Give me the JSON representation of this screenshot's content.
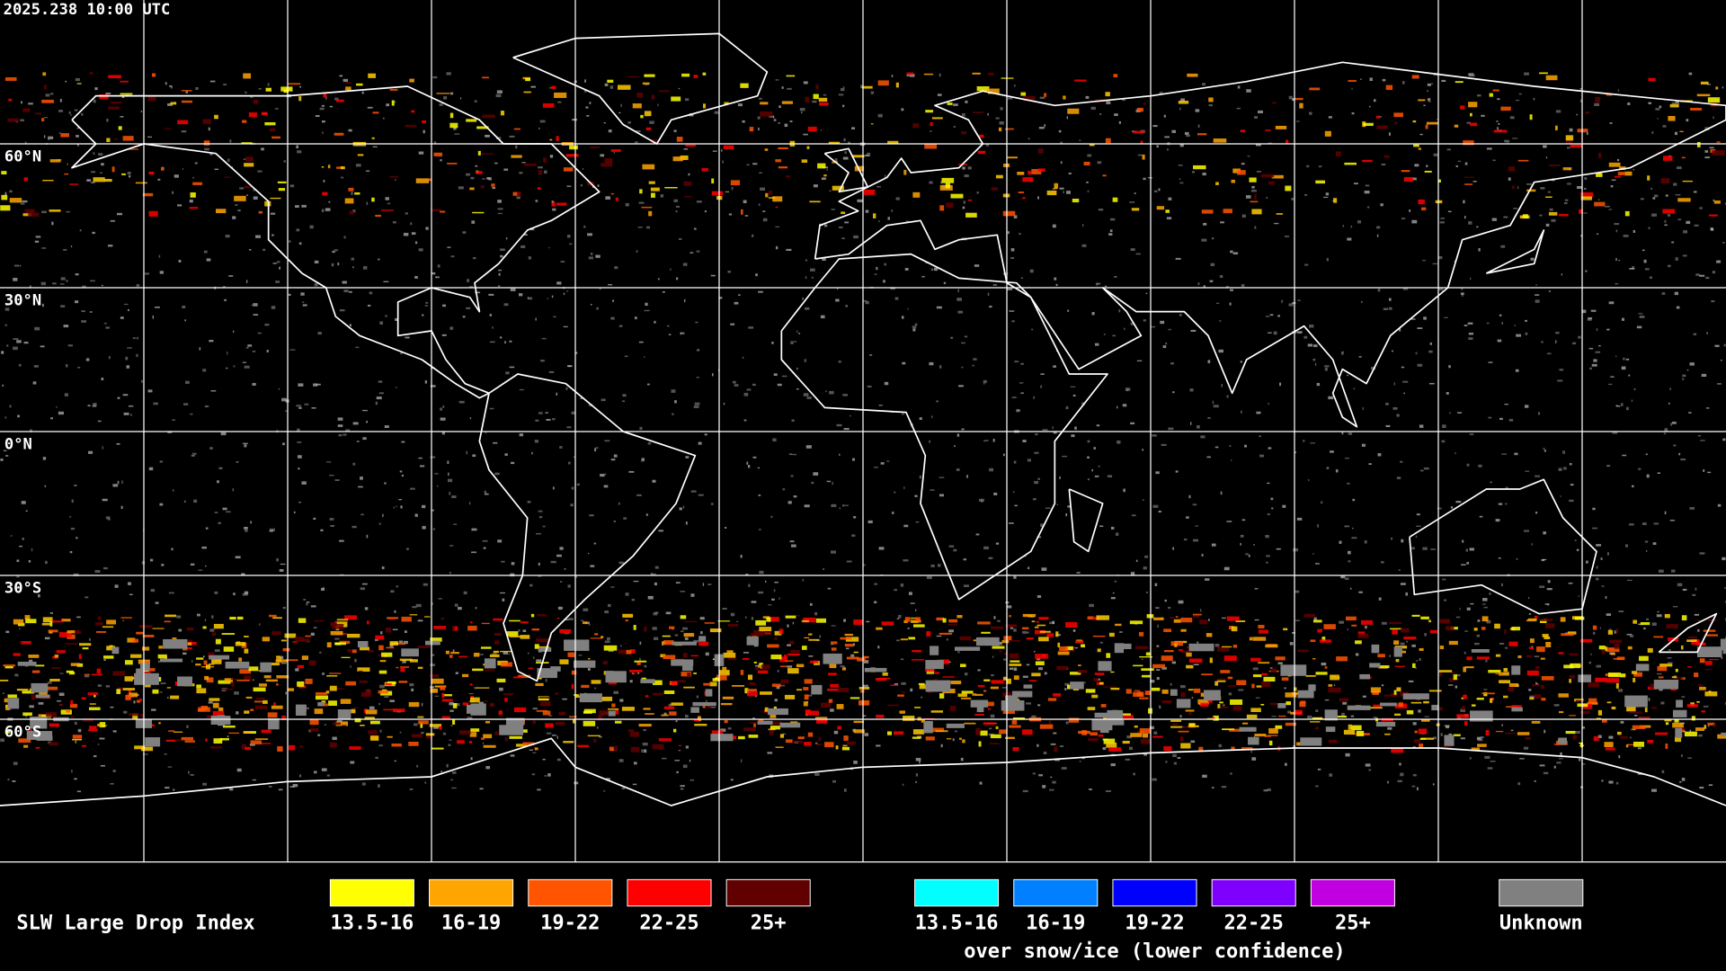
{
  "header": {
    "timestamp": "2025.238 10:00 UTC"
  },
  "map": {
    "latitude_labels": [
      "60°N",
      "30°N",
      "0°N",
      "30°S",
      "60°S"
    ]
  },
  "legend": {
    "title": "SLW Large Drop Index",
    "groups": [
      {
        "items": [
          {
            "label": "13.5-16",
            "color": "#ffff00"
          },
          {
            "label": "16-19",
            "color": "#ffa500"
          },
          {
            "label": "19-22",
            "color": "#ff5500"
          },
          {
            "label": "22-25",
            "color": "#ff0000"
          },
          {
            "label": "25+",
            "color": "#600000"
          }
        ]
      },
      {
        "items": [
          {
            "label": "13.5-16",
            "color": "#00ffff"
          },
          {
            "label": "16-19",
            "color": "#0080ff"
          },
          {
            "label": "19-22",
            "color": "#0000ff"
          },
          {
            "label": "22-25",
            "color": "#8000ff"
          },
          {
            "label": "25+",
            "color": "#c000e0"
          }
        ],
        "caption": "over snow/ice (lower confidence)"
      },
      {
        "items": [
          {
            "label": "Unknown",
            "color": "#808080"
          }
        ]
      }
    ]
  }
}
